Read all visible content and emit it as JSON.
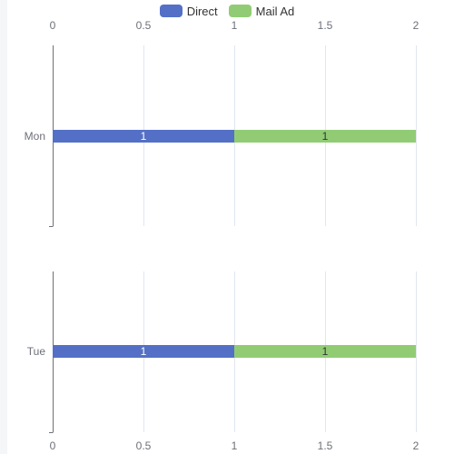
{
  "legend": [
    {
      "label": "Direct",
      "color": "#5470c6"
    },
    {
      "label": "Mail Ad",
      "color": "#91cc75"
    }
  ],
  "chart_data": {
    "type": "bar",
    "orientation": "horizontal",
    "stacked": true,
    "legend_position": "top-center",
    "grid": true,
    "x_ticks": [
      "0",
      "0.5",
      "1",
      "1.5",
      "2"
    ],
    "xlim": [
      0,
      2
    ],
    "charts": [
      {
        "category": "Mon",
        "x_axis_position": "top",
        "series": [
          {
            "name": "Direct",
            "value": 1,
            "color": "#5470c6",
            "label_color": "#ffffff"
          },
          {
            "name": "Mail Ad",
            "value": 1,
            "color": "#91cc75",
            "label_color": "#333333"
          }
        ]
      },
      {
        "category": "Tue",
        "x_axis_position": "bottom",
        "series": [
          {
            "name": "Direct",
            "value": 1,
            "color": "#5470c6",
            "label_color": "#ffffff"
          },
          {
            "name": "Mail Ad",
            "value": 1,
            "color": "#91cc75",
            "label_color": "#333333"
          }
        ]
      }
    ]
  }
}
